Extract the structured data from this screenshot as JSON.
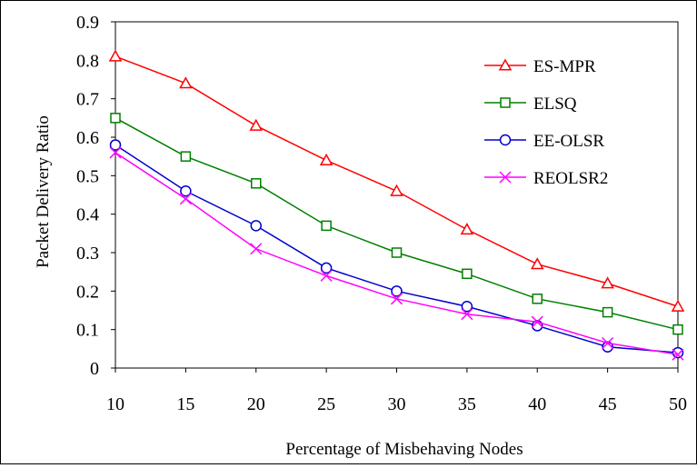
{
  "chart_data": {
    "type": "line",
    "title": "",
    "xlabel": "Percentage of Misbehaving Nodes",
    "ylabel": "Packet Delivery Ratio",
    "x": [
      10,
      15,
      20,
      25,
      30,
      35,
      40,
      45,
      50
    ],
    "xlim": [
      10,
      50
    ],
    "ylim": [
      0,
      0.9
    ],
    "yticks": [
      "0",
      "0.1",
      "0.2",
      "0.3",
      "0.4",
      "0.5",
      "0.6",
      "0.7",
      "0.8",
      "0.9"
    ],
    "xticks": [
      "10",
      "15",
      "20",
      "25",
      "30",
      "35",
      "40",
      "45",
      "50"
    ],
    "grid": false,
    "legend_position": "top-right",
    "series": [
      {
        "name": "ES-MPR",
        "color": "#ff0000",
        "marker": "triangle",
        "values": [
          0.81,
          0.74,
          0.63,
          0.54,
          0.46,
          0.36,
          0.27,
          0.22,
          0.16
        ]
      },
      {
        "name": "ELSQ",
        "color": "#008000",
        "marker": "square",
        "values": [
          0.65,
          0.55,
          0.48,
          0.37,
          0.3,
          0.245,
          0.18,
          0.145,
          0.1
        ]
      },
      {
        "name": "EE-OLSR",
        "color": "#0000cc",
        "marker": "circle",
        "values": [
          0.58,
          0.46,
          0.37,
          0.26,
          0.2,
          0.16,
          0.11,
          0.055,
          0.04
        ]
      },
      {
        "name": "REOLSR2",
        "color": "#ff00ff",
        "marker": "x",
        "values": [
          0.56,
          0.44,
          0.31,
          0.24,
          0.18,
          0.14,
          0.12,
          0.065,
          0.035
        ]
      }
    ]
  }
}
